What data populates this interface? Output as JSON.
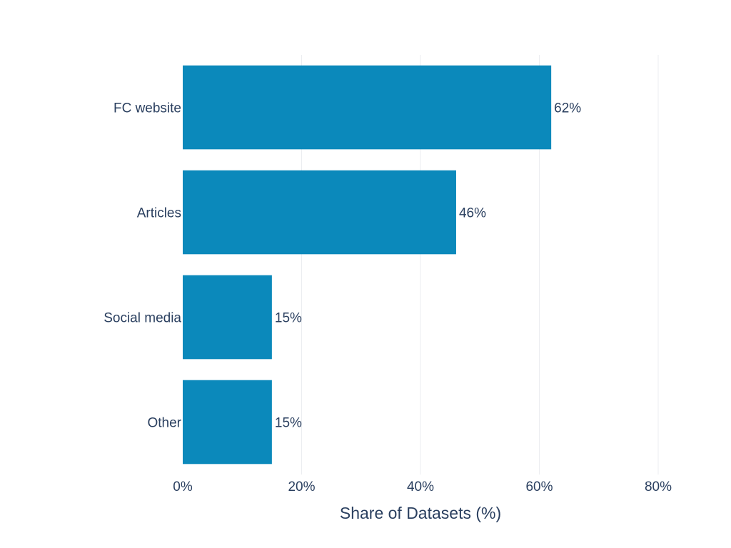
{
  "chart_data": {
    "type": "bar",
    "orientation": "horizontal",
    "categories": [
      "FC website",
      "Articles",
      "Social media",
      "Other"
    ],
    "values": [
      62,
      46,
      15,
      15
    ],
    "data_labels": [
      "62%",
      "46%",
      "15%",
      "15%"
    ],
    "xlabel": "Share of Datasets (%)",
    "ylabel": "",
    "xlim": [
      0,
      80
    ],
    "x_ticks": [
      0,
      20,
      40,
      60,
      80
    ],
    "x_tick_labels": [
      "0%",
      "20%",
      "40%",
      "60%",
      "80%"
    ],
    "grid": "vertical",
    "legend": "none",
    "bar_color": "#0b89bb",
    "text_color": "#2a3f5f",
    "grid_color": "#ebedf0"
  }
}
